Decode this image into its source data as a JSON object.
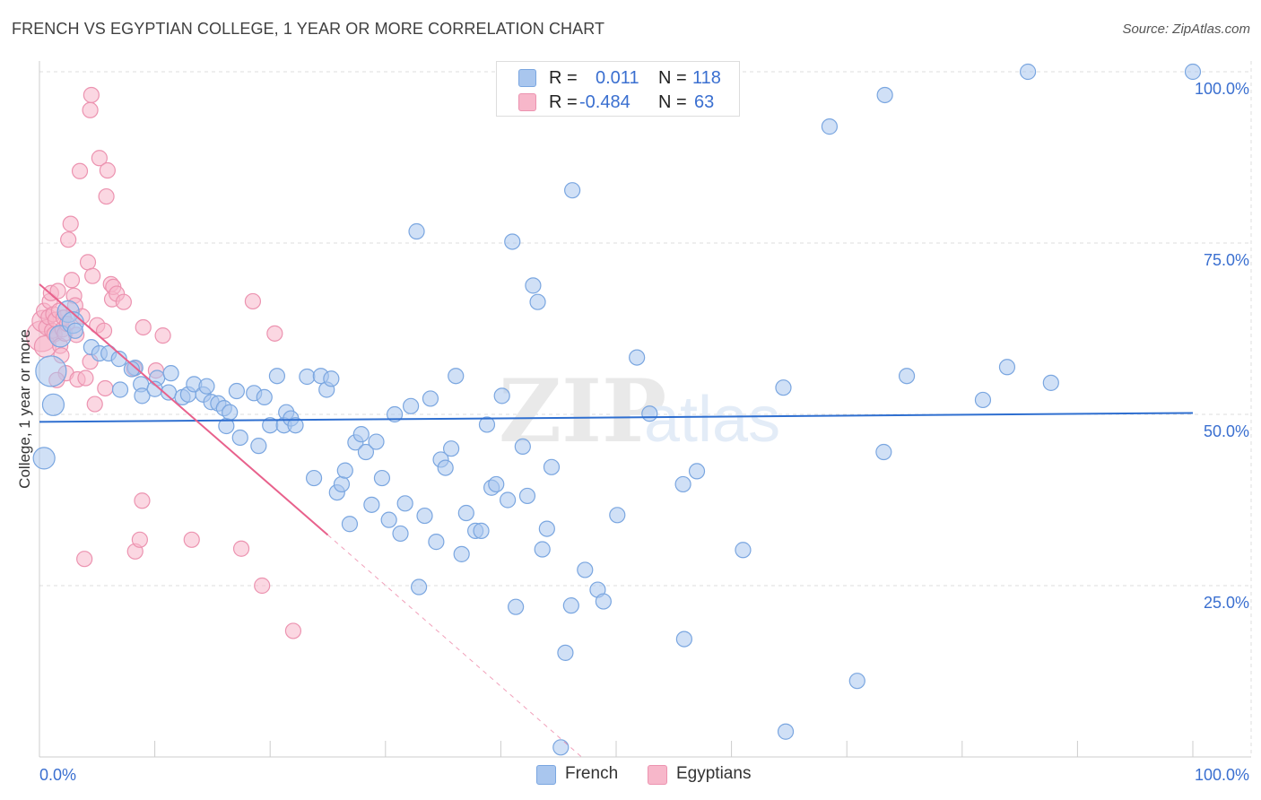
{
  "header": {
    "title": "FRENCH VS EGYPTIAN COLLEGE, 1 YEAR OR MORE CORRELATION CHART",
    "source": "Source: ZipAtlas.com"
  },
  "watermark": "ZIPatlas",
  "legend": {
    "french": {
      "r_label": "R =",
      "r_value": "0.011",
      "n_label": "N =",
      "n_value": "118"
    },
    "egyptians": {
      "r_label": "R =",
      "r_value": "-0.484",
      "n_label": "N =",
      "n_value": "63"
    }
  },
  "bottom_legend": {
    "french": "French",
    "egyptians": "Egyptians"
  },
  "colors": {
    "french_fill": "#a9c6ee",
    "french_stroke": "#7aa6e0",
    "french_line": "#2f6fd0",
    "egypt_fill": "#f7b7ca",
    "egypt_stroke": "#ec93b0",
    "egypt_line": "#e8618c",
    "grid": "#dedede",
    "tick_text": "#3a6fd0"
  },
  "chart_data": {
    "type": "scatter",
    "title": "FRENCH VS EGYPTIAN COLLEGE, 1 YEAR OR MORE CORRELATION CHART",
    "xlabel": "",
    "ylabel": "College, 1 year or more",
    "xlim": [
      0,
      100
    ],
    "ylim": [
      0,
      100
    ],
    "x_ticks": [
      {
        "value": 0,
        "label": "0.0%"
      },
      {
        "value": 100,
        "label": "100.0%"
      }
    ],
    "y_ticks": [
      {
        "value": 25,
        "label": "25.0%"
      },
      {
        "value": 50,
        "label": "50.0%"
      },
      {
        "value": 75,
        "label": "75.0%"
      },
      {
        "value": 100,
        "label": "100.0%"
      }
    ],
    "grid": true,
    "legend_position": "top-center",
    "series": [
      {
        "name": "French",
        "r": 0.011,
        "n": 118,
        "trend": {
          "x0": 0,
          "y0": 48.9,
          "x1": 100,
          "y1": 50.2
        },
        "points": [
          [
            1.0,
            56.3,
            3
          ],
          [
            1.2,
            51.4,
            2
          ],
          [
            0.4,
            43.6,
            2
          ],
          [
            1.8,
            61.4,
            2
          ],
          [
            2.5,
            65.0,
            2
          ],
          [
            2.9,
            63.4,
            2
          ],
          [
            3.1,
            62.2,
            1
          ],
          [
            4.5,
            59.8,
            1
          ],
          [
            5.2,
            58.9,
            1
          ],
          [
            6.0,
            58.9,
            1
          ],
          [
            6.9,
            58.1,
            1
          ],
          [
            8.3,
            56.8,
            1
          ],
          [
            7.0,
            53.6,
            1
          ],
          [
            8.0,
            56.6,
            1
          ],
          [
            8.8,
            54.4,
            1
          ],
          [
            8.9,
            52.7,
            1
          ],
          [
            10.2,
            55.3,
            1
          ],
          [
            10.0,
            53.7,
            1
          ],
          [
            11.2,
            53.2,
            1
          ],
          [
            11.4,
            56.0,
            1
          ],
          [
            12.4,
            52.5,
            1
          ],
          [
            12.9,
            52.9,
            1
          ],
          [
            13.4,
            54.4,
            1
          ],
          [
            14.2,
            52.9,
            1
          ],
          [
            14.5,
            54.1,
            1
          ],
          [
            14.9,
            51.8,
            1
          ],
          [
            15.5,
            51.6,
            1
          ],
          [
            16.0,
            50.9,
            1
          ],
          [
            16.2,
            48.3,
            1
          ],
          [
            16.5,
            50.3,
            1
          ],
          [
            17.1,
            53.4,
            1
          ],
          [
            17.4,
            46.6,
            1
          ],
          [
            18.6,
            53.1,
            1
          ],
          [
            19.0,
            45.4,
            1
          ],
          [
            19.5,
            52.5,
            1
          ],
          [
            20.0,
            48.4,
            1
          ],
          [
            20.6,
            55.6,
            1
          ],
          [
            21.4,
            50.3,
            1
          ],
          [
            21.2,
            48.4,
            1
          ],
          [
            21.8,
            49.4,
            1
          ],
          [
            22.2,
            48.4,
            1
          ],
          [
            23.2,
            55.5,
            1
          ],
          [
            23.8,
            40.7,
            1
          ],
          [
            24.4,
            55.6,
            1
          ],
          [
            24.9,
            53.6,
            1
          ],
          [
            25.3,
            55.2,
            1
          ],
          [
            25.8,
            38.6,
            1
          ],
          [
            26.2,
            39.8,
            1
          ],
          [
            26.5,
            41.8,
            1
          ],
          [
            26.9,
            34.0,
            1
          ],
          [
            27.4,
            45.9,
            1
          ],
          [
            27.9,
            47.1,
            1
          ],
          [
            28.3,
            44.5,
            1
          ],
          [
            28.8,
            36.8,
            1
          ],
          [
            29.2,
            46.0,
            1
          ],
          [
            29.7,
            40.7,
            1
          ],
          [
            30.3,
            34.6,
            1
          ],
          [
            30.8,
            50.0,
            1
          ],
          [
            31.3,
            32.6,
            1
          ],
          [
            31.7,
            37.0,
            1
          ],
          [
            32.2,
            51.2,
            1
          ],
          [
            32.7,
            76.7,
            1
          ],
          [
            32.9,
            24.8,
            1
          ],
          [
            33.4,
            35.2,
            1
          ],
          [
            33.9,
            52.3,
            1
          ],
          [
            34.4,
            31.4,
            1
          ],
          [
            34.8,
            43.4,
            1
          ],
          [
            35.2,
            42.2,
            1
          ],
          [
            35.7,
            45.0,
            1
          ],
          [
            36.1,
            55.6,
            1
          ],
          [
            36.6,
            29.6,
            1
          ],
          [
            37.0,
            35.6,
            1
          ],
          [
            37.8,
            33.0,
            1
          ],
          [
            38.3,
            33.0,
            1
          ],
          [
            38.8,
            48.5,
            1
          ],
          [
            39.2,
            39.3,
            1
          ],
          [
            39.6,
            39.8,
            1
          ],
          [
            40.1,
            52.7,
            1
          ],
          [
            40.6,
            37.5,
            1
          ],
          [
            41.0,
            75.2,
            1
          ],
          [
            41.3,
            21.9,
            1
          ],
          [
            41.9,
            45.3,
            1
          ],
          [
            42.3,
            38.1,
            1
          ],
          [
            42.8,
            68.8,
            1
          ],
          [
            43.2,
            66.4,
            1
          ],
          [
            43.6,
            30.3,
            1
          ],
          [
            44.0,
            33.3,
            1
          ],
          [
            44.4,
            42.3,
            1
          ],
          [
            45.2,
            1.4,
            1
          ],
          [
            45.6,
            15.2,
            1
          ],
          [
            46.1,
            22.1,
            1
          ],
          [
            46.2,
            82.7,
            1
          ],
          [
            47.3,
            27.3,
            1
          ],
          [
            48.4,
            24.4,
            1
          ],
          [
            48.9,
            22.7,
            1
          ],
          [
            50.1,
            35.3,
            1
          ],
          [
            51.8,
            58.3,
            1
          ],
          [
            52.9,
            50.1,
            1
          ],
          [
            55.9,
            17.2,
            1
          ],
          [
            55.8,
            39.8,
            1
          ],
          [
            57.0,
            41.7,
            1
          ],
          [
            59.5,
            100.0,
            1
          ],
          [
            61.0,
            30.2,
            1
          ],
          [
            64.5,
            53.9,
            1
          ],
          [
            64.7,
            3.7,
            1
          ],
          [
            68.5,
            92.0,
            1
          ],
          [
            70.9,
            11.1,
            1
          ],
          [
            73.2,
            44.5,
            1
          ],
          [
            73.3,
            96.6,
            1
          ],
          [
            75.2,
            55.6,
            1
          ],
          [
            81.8,
            52.1,
            1
          ],
          [
            83.9,
            56.9,
            1
          ],
          [
            85.7,
            100.0,
            1
          ],
          [
            87.7,
            54.6,
            1
          ],
          [
            100.0,
            100.0,
            1
          ]
        ]
      },
      {
        "name": "Egyptians",
        "r": -0.484,
        "n": 63,
        "trend": {
          "x0": 0,
          "y0": 69.0,
          "x1": 25.0,
          "y1": 32.4,
          "dash_to_x": 47.0,
          "dash_to_y": 0.0
        },
        "points": [
          [
            0.2,
            61.4,
            3
          ],
          [
            0.3,
            63.6,
            2
          ],
          [
            0.5,
            59.9,
            2
          ],
          [
            0.4,
            65.1,
            1
          ],
          [
            0.6,
            62.7,
            1
          ],
          [
            0.8,
            64.2,
            1
          ],
          [
            0.9,
            66.5,
            1
          ],
          [
            1.0,
            67.7,
            1
          ],
          [
            1.1,
            62.2,
            1
          ],
          [
            1.2,
            64.6,
            1
          ],
          [
            1.3,
            61.7,
            1
          ],
          [
            1.4,
            63.8,
            1
          ],
          [
            1.6,
            68.0,
            1
          ],
          [
            1.7,
            65.1,
            1
          ],
          [
            1.8,
            60.0,
            1
          ],
          [
            1.9,
            58.6,
            1
          ],
          [
            2.0,
            62.4,
            1
          ],
          [
            2.1,
            64.1,
            1
          ],
          [
            2.2,
            61.8,
            1
          ],
          [
            2.3,
            56.0,
            1
          ],
          [
            2.4,
            63.2,
            1
          ],
          [
            2.5,
            75.5,
            1
          ],
          [
            2.7,
            77.8,
            1
          ],
          [
            2.8,
            69.6,
            1
          ],
          [
            3.0,
            67.3,
            1
          ],
          [
            3.1,
            65.9,
            1
          ],
          [
            3.2,
            61.6,
            1
          ],
          [
            3.3,
            55.1,
            1
          ],
          [
            3.5,
            85.5,
            1
          ],
          [
            3.7,
            64.3,
            1
          ],
          [
            3.9,
            28.9,
            1
          ],
          [
            4.0,
            55.3,
            1
          ],
          [
            4.2,
            72.2,
            1
          ],
          [
            4.4,
            57.7,
            1
          ],
          [
            4.4,
            94.4,
            1
          ],
          [
            4.5,
            96.6,
            1
          ],
          [
            4.6,
            70.2,
            1
          ],
          [
            4.8,
            51.5,
            1
          ],
          [
            5.0,
            63.0,
            1
          ],
          [
            5.2,
            87.4,
            1
          ],
          [
            5.6,
            62.2,
            1
          ],
          [
            5.7,
            53.8,
            1
          ],
          [
            5.8,
            81.8,
            1
          ],
          [
            5.9,
            85.6,
            1
          ],
          [
            6.2,
            69.0,
            1
          ],
          [
            6.3,
            66.8,
            1
          ],
          [
            6.4,
            68.6,
            1
          ],
          [
            6.7,
            67.6,
            1
          ],
          [
            7.3,
            66.4,
            1
          ],
          [
            8.2,
            56.7,
            1
          ],
          [
            8.3,
            30.0,
            1
          ],
          [
            8.7,
            31.7,
            1
          ],
          [
            8.9,
            37.4,
            1
          ],
          [
            9.0,
            62.7,
            1
          ],
          [
            10.1,
            56.4,
            1
          ],
          [
            10.7,
            61.5,
            1
          ],
          [
            13.2,
            31.7,
            1
          ],
          [
            17.5,
            30.4,
            1
          ],
          [
            18.5,
            66.5,
            1
          ],
          [
            19.3,
            25.0,
            1
          ],
          [
            20.4,
            61.8,
            1
          ],
          [
            22.0,
            18.4,
            1
          ],
          [
            1.5,
            55.0,
            1
          ]
        ]
      }
    ]
  }
}
